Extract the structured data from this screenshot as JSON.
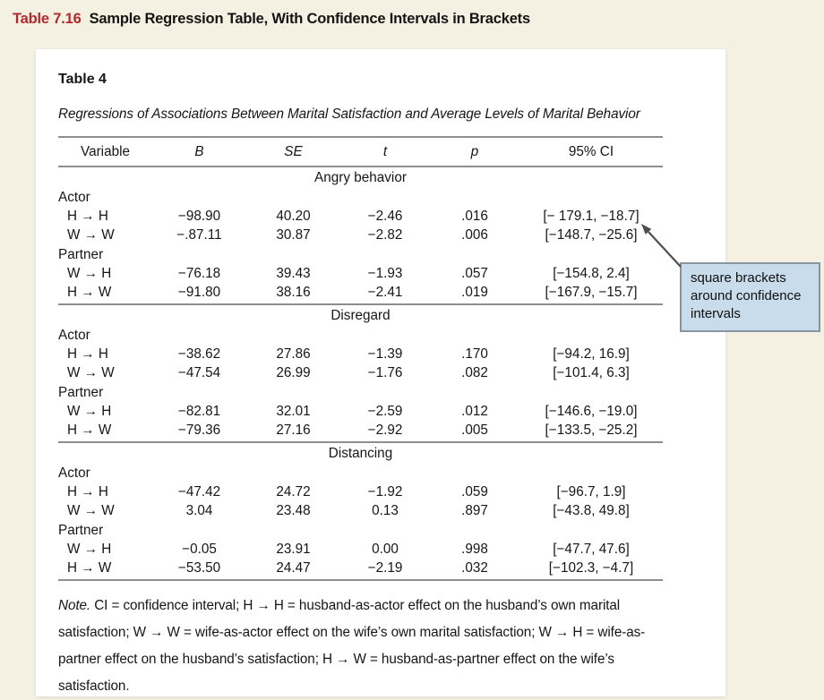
{
  "page": {
    "heading_number": "Table 7.16",
    "heading_title": "Sample Regression Table, With Confidence Intervals in Brackets"
  },
  "table": {
    "label": "Table 4",
    "caption": "Regressions of Associations Between Marital Satisfaction and Average Levels of Marital Behavior",
    "columns": [
      "Variable",
      "B",
      "SE",
      "t",
      "p",
      "95% CI"
    ],
    "sections": [
      {
        "title": "Angry behavior",
        "groups": [
          {
            "label": "Actor",
            "rows": [
              {
                "variable": "H → H",
                "B": "−98.90",
                "SE": "40.20",
                "t": "−2.46",
                "p": ".016",
                "ci": "[− 179.1, −18.7]"
              },
              {
                "variable": "W → W",
                "B": "−.87.11",
                "SE": "30.87",
                "t": "−2.82",
                "p": ".006",
                "ci": "[−148.7, −25.6]"
              }
            ]
          },
          {
            "label": "Partner",
            "rows": [
              {
                "variable": "W → H",
                "B": "−76.18",
                "SE": "39.43",
                "t": "−1.93",
                "p": ".057",
                "ci": "[−154.8, 2.4]"
              },
              {
                "variable": "H → W",
                "B": "−91.80",
                "SE": "38.16",
                "t": "−2.41",
                "p": ".019",
                "ci": "[−167.9, −15.7]"
              }
            ]
          }
        ]
      },
      {
        "title": "Disregard",
        "groups": [
          {
            "label": "Actor",
            "rows": [
              {
                "variable": "H → H",
                "B": "−38.62",
                "SE": "27.86",
                "t": "−1.39",
                "p": ".170",
                "ci": "[−94.2, 16.9]"
              },
              {
                "variable": "W → W",
                "B": "−47.54",
                "SE": "26.99",
                "t": "−1.76",
                "p": ".082",
                "ci": "[−101.4, 6.3]"
              }
            ]
          },
          {
            "label": "Partner",
            "rows": [
              {
                "variable": "W → H",
                "B": "−82.81",
                "SE": "32.01",
                "t": "−2.59",
                "p": ".012",
                "ci": "[−146.6, −19.0]"
              },
              {
                "variable": "H → W",
                "B": "−79.36",
                "SE": "27.16",
                "t": "−2.92",
                "p": ".005",
                "ci": "[−133.5, −25.2]"
              }
            ]
          }
        ]
      },
      {
        "title": "Distancing",
        "groups": [
          {
            "label": "Actor",
            "rows": [
              {
                "variable": "H → H",
                "B": "−47.42",
                "SE": "24.72",
                "t": "−1.92",
                "p": ".059",
                "ci": "[−96.7, 1.9]"
              },
              {
                "variable": "W → W",
                "B": "3.04",
                "SE": "23.48",
                "t": "0.13",
                "p": ".897",
                "ci": "[−43.8, 49.8]"
              }
            ]
          },
          {
            "label": "Partner",
            "rows": [
              {
                "variable": "W → H",
                "B": "−0.05",
                "SE": "23.91",
                "t": "0.00",
                "p": ".998",
                "ci": "[−47.7, 47.6]"
              },
              {
                "variable": "H → W",
                "B": "−53.50",
                "SE": "24.47",
                "t": "−2.19",
                "p": ".032",
                "ci": "[−102.3, −4.7]"
              }
            ]
          }
        ]
      }
    ]
  },
  "note": {
    "label": "Note.",
    "text": " CI = confidence interval; H → H = husband-as-actor effect on the husband’s own marital satisfaction; W → W = wife-as-actor effect on the wife’s own marital satisfaction; W → H = wife-as-partner effect on the husband’s satisfaction; H → W = husband-as-partner effect on the wife’s satisfaction."
  },
  "callout": {
    "text": "square brackets around confidence intervals"
  },
  "colors": {
    "page_background": "#f4f1e3",
    "panel_background": "#ffffff",
    "heading_accent": "#b2292e",
    "table_rule": "#8e8e8e",
    "callout_background": "#c8dcec",
    "callout_border": "#8795a3",
    "arrow": "#4f4f4f"
  }
}
